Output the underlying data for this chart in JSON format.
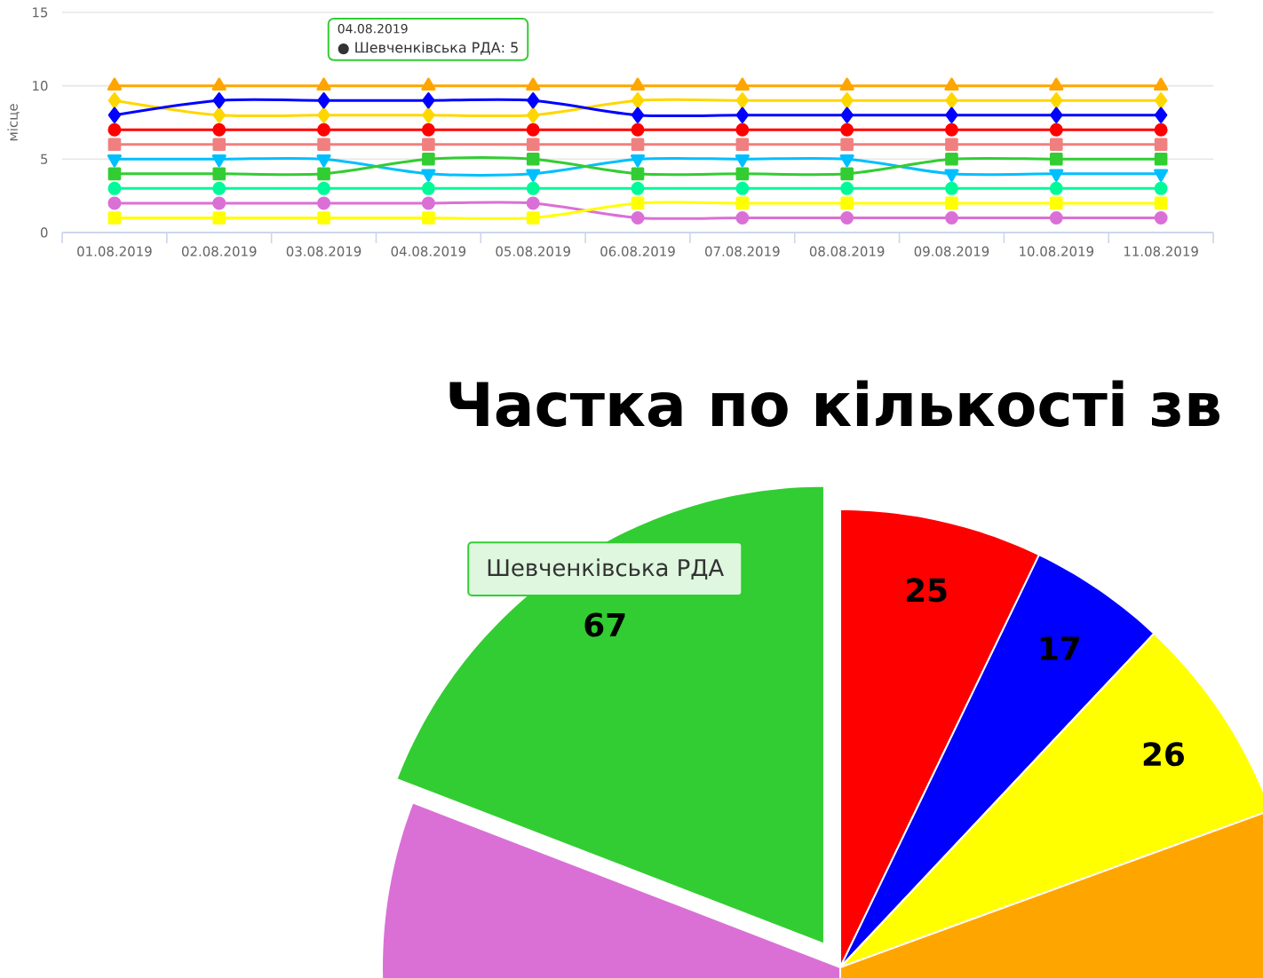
{
  "chart_data": [
    {
      "type": "line",
      "ylabel": "місце",
      "categories": [
        "01.08.2019",
        "02.08.2019",
        "03.08.2019",
        "04.08.2019",
        "05.08.2019",
        "06.08.2019",
        "07.08.2019",
        "08.08.2019",
        "09.08.2019",
        "10.08.2019",
        "11.08.2019"
      ],
      "ylim": [
        0,
        15
      ],
      "yticks": [
        0,
        5,
        10,
        15
      ],
      "grid": "y",
      "series": [
        {
          "color": "#ffa500",
          "marker": "triangle",
          "values": [
            10,
            10,
            10,
            10,
            10,
            10,
            10,
            10,
            10,
            10,
            10
          ]
        },
        {
          "color": "#ffd700",
          "marker": "diamond",
          "values": [
            9,
            8,
            8,
            8,
            8,
            9,
            9,
            9,
            9,
            9,
            9
          ]
        },
        {
          "color": "#0000ff",
          "marker": "diamond",
          "values": [
            8,
            9,
            9,
            9,
            9,
            8,
            8,
            8,
            8,
            8,
            8
          ]
        },
        {
          "color": "#ff0000",
          "marker": "circle",
          "values": [
            7,
            7,
            7,
            7,
            7,
            7,
            7,
            7,
            7,
            7,
            7
          ]
        },
        {
          "color": "#f08080",
          "marker": "square",
          "values": [
            6,
            6,
            6,
            6,
            6,
            6,
            6,
            6,
            6,
            6,
            6
          ]
        },
        {
          "color": "#00bfff",
          "marker": "triangle-down",
          "values": [
            5,
            5,
            5,
            4,
            4,
            5,
            5,
            5,
            4,
            4,
            4
          ]
        },
        {
          "color": "#32cd32",
          "marker": "square",
          "values": [
            4,
            4,
            4,
            5,
            5,
            4,
            4,
            4,
            5,
            5,
            5
          ]
        },
        {
          "color": "#00fa9a",
          "marker": "circle",
          "values": [
            3,
            3,
            3,
            3,
            3,
            3,
            3,
            3,
            3,
            3,
            3
          ]
        },
        {
          "color": "#da70d6",
          "marker": "circle",
          "values": [
            2,
            2,
            2,
            2,
            2,
            1,
            1,
            1,
            1,
            1,
            1
          ]
        },
        {
          "color": "#ffff00",
          "marker": "square",
          "values": [
            1,
            1,
            1,
            1,
            1,
            2,
            2,
            2,
            2,
            2,
            2
          ]
        }
      ],
      "annotations": [
        "04.08.2019",
        "● Шевченківська РДА: 5"
      ]
    },
    {
      "type": "pie",
      "title": "Частка по кількості зв",
      "categories": [
        null,
        null,
        null,
        null,
        null,
        "Шевченківська РДА"
      ],
      "values": [
        25,
        17,
        26,
        107,
        108,
        67
      ],
      "colors": [
        "#ff0000",
        "#0000ff",
        "#ffff00",
        "#ffa500",
        "#da70d6",
        "#32cd32"
      ],
      "value_labels": [
        "25",
        "17",
        "26",
        null,
        null,
        "67"
      ]
    }
  ]
}
